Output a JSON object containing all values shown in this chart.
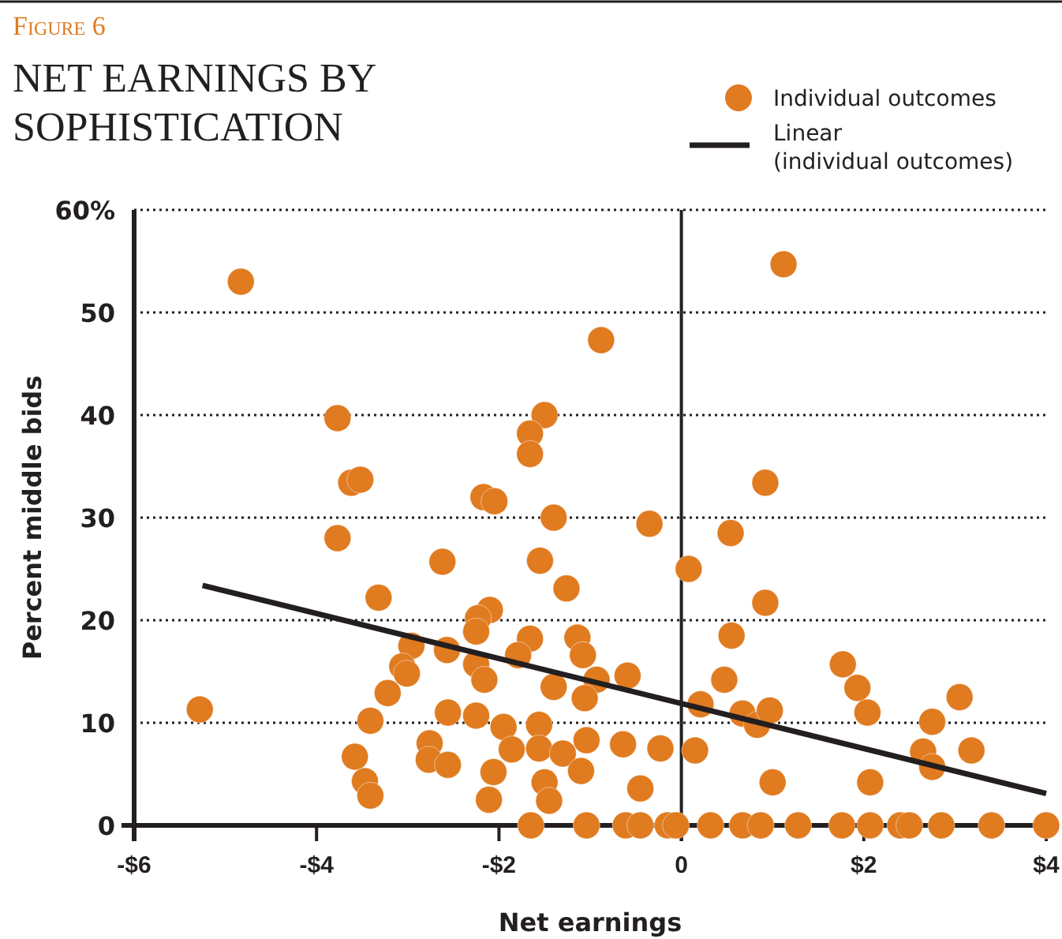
{
  "chart_data": {
    "type": "scatter",
    "title": "Figure 6",
    "subtitle": "NET EARNINGS BY SOPHISTICATION",
    "xlabel": "Net earnings",
    "ylabel": "Percent middle bids",
    "xlim": [
      -6,
      4
    ],
    "xticks": [
      {
        "value": -6,
        "label": "-$6"
      },
      {
        "value": -4,
        "label": "-$4"
      },
      {
        "value": -2,
        "label": "-$2"
      },
      0,
      {
        "value": 2,
        "label": "$2"
      },
      {
        "value": 4,
        "label": "$4"
      }
    ],
    "ylim": [
      0,
      60
    ],
    "yticks": [
      0,
      10,
      20,
      30,
      40,
      50,
      {
        "value": 60,
        "label": "60%"
      }
    ],
    "grid": "y",
    "legend": "top right",
    "marker": "circle",
    "ref_lines": [
      {
        "axis": "x",
        "value": 0,
        "color": "#231f20"
      }
    ],
    "series": [
      {
        "name": "Individual outcomes",
        "color": "#e07b20",
        "x": [
          -5.28,
          -4.83,
          -3.77,
          -3.62,
          -3.52,
          -3.77,
          -3.32,
          -2.96,
          -3.06,
          -3.01,
          -3.22,
          -3.41,
          -3.58,
          -3.47,
          -3.41,
          -2.62,
          -0.88,
          -1.5,
          -1.66,
          -1.66,
          -2.17,
          -2.05,
          -1.4,
          -0.35,
          -1.55,
          -1.26,
          0.08,
          -2.1,
          -2.23,
          -2.25,
          -2.57,
          -1.66,
          -1.79,
          -1.14,
          -1.08,
          -2.25,
          -2.16,
          -0.93,
          -0.59,
          -1.4,
          -1.06,
          -2.56,
          -2.25,
          -1.95,
          -1.56,
          -2.76,
          -2.77,
          -2.56,
          -1.86,
          -1.56,
          -1.3,
          -1.04,
          -0.64,
          -0.23,
          -2.06,
          -2.11,
          -1.1,
          -1.5,
          -1.45,
          -0.45,
          0.15,
          -1.65,
          -1.04,
          -0.61,
          -0.45,
          -0.15,
          -0.06,
          0.32,
          0.67,
          0.87,
          1.28,
          1.76,
          2.07,
          2.4,
          2.5,
          2.85,
          3.4,
          4.0,
          1.12,
          0.92,
          0.54,
          0.92,
          0.55,
          0.47,
          0.21,
          0.67,
          0.83,
          0.97,
          1.0,
          1.77,
          1.93,
          2.04,
          2.07,
          3.05,
          2.75,
          2.65,
          2.75,
          3.18
        ],
        "values": [
          11.3,
          53,
          39.7,
          33.4,
          33.7,
          28,
          22.2,
          17.5,
          15.5,
          14.8,
          12.9,
          10.2,
          6.7,
          4.3,
          2.9,
          25.7,
          47.3,
          40,
          38.2,
          36.2,
          32,
          31.6,
          30,
          29.4,
          25.8,
          23.1,
          25,
          21,
          20.2,
          18.9,
          17.1,
          18.2,
          16.6,
          18.3,
          16.6,
          15.7,
          14.2,
          14.2,
          14.6,
          13.5,
          12.4,
          11,
          10.7,
          9.6,
          9.8,
          8,
          6.4,
          5.9,
          7.4,
          7.5,
          7,
          8.3,
          7.9,
          7.5,
          5.2,
          2.5,
          5.3,
          4.2,
          2.4,
          3.6,
          7.3,
          0,
          0,
          0,
          0,
          0,
          0,
          0,
          0,
          0,
          0,
          0,
          0,
          0,
          0,
          0,
          0,
          0,
          54.7,
          33.4,
          28.5,
          21.7,
          18.5,
          14.2,
          11.8,
          10.9,
          9.8,
          11.2,
          4.2,
          15.7,
          13.4,
          11,
          4.2,
          12.5,
          10.1,
          7.2,
          5.7,
          7.3
        ]
      },
      {
        "name": "Linear (individual outcomes)",
        "type": "line",
        "color": "#231f20",
        "marker": "none",
        "line_style": "solid",
        "x": [
          -5.25,
          4
        ],
        "values": [
          23.4,
          3.1
        ]
      }
    ]
  }
}
